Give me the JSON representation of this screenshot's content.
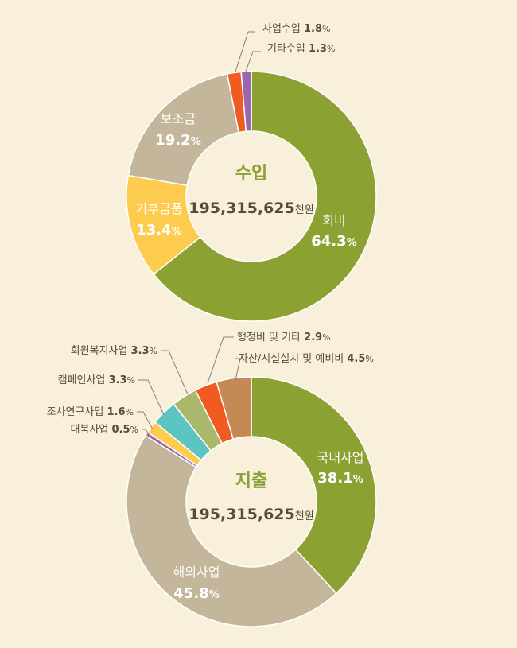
{
  "chart_data": [
    {
      "type": "pie",
      "title": "수입",
      "total": "195,315,625",
      "unit": "천원",
      "slices": [
        {
          "label": "회비",
          "value": 64.3,
          "color": "#8ba232"
        },
        {
          "label": "기부금품",
          "value": 13.4,
          "color": "#fdcc4f"
        },
        {
          "label": "보조금",
          "value": 19.2,
          "color": "#c4b69a"
        },
        {
          "label": "사업수입",
          "value": 1.8,
          "color": "#f05b22"
        },
        {
          "label": "기타수입",
          "value": 1.3,
          "color": "#9b67ad"
        }
      ]
    },
    {
      "type": "pie",
      "title": "지출",
      "total": "195,315,625",
      "unit": "천원",
      "slices": [
        {
          "label": "국내사업",
          "value": 38.1,
          "color": "#8ba232"
        },
        {
          "label": "해외사업",
          "value": 45.8,
          "color": "#c4b69a"
        },
        {
          "label": "대북사업",
          "value": 0.5,
          "color": "#9b67ad"
        },
        {
          "label": "조사연구사업",
          "value": 1.6,
          "color": "#fdcc4f"
        },
        {
          "label": "캠페인사업",
          "value": 3.3,
          "color": "#5bc6c1"
        },
        {
          "label": "회원복지사업",
          "value": 3.3,
          "color": "#a9b86a"
        },
        {
          "label": "행정비 및 기타",
          "value": 2.9,
          "color": "#f05b22"
        },
        {
          "label": "자산/시설설치 및 예비비",
          "value": 4.5,
          "color": "#c48955"
        }
      ]
    }
  ]
}
